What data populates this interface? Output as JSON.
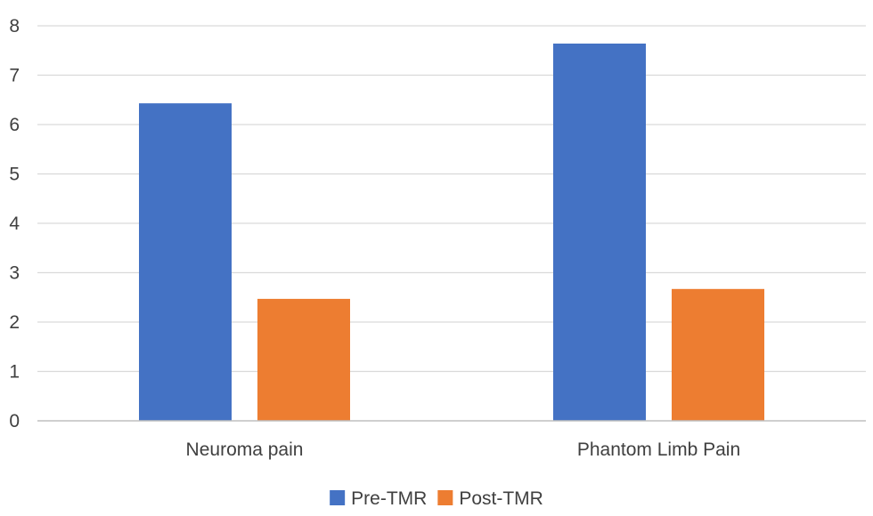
{
  "chart_data": {
    "type": "bar",
    "categories": [
      "Neuroma pain",
      "Phantom Limb Pain"
    ],
    "series": [
      {
        "name": "Pre-TMR",
        "color": "#4472C4",
        "values": [
          6.43,
          7.64
        ]
      },
      {
        "name": "Post-TMR",
        "color": "#ED7D31",
        "values": [
          2.47,
          2.67
        ]
      }
    ],
    "ylim": [
      0,
      8
    ],
    "yticks": [
      0,
      1,
      2,
      3,
      4,
      5,
      6,
      7,
      8
    ],
    "grid": true,
    "legend": "bottom",
    "title": "",
    "xlabel": "",
    "ylabel": ""
  }
}
